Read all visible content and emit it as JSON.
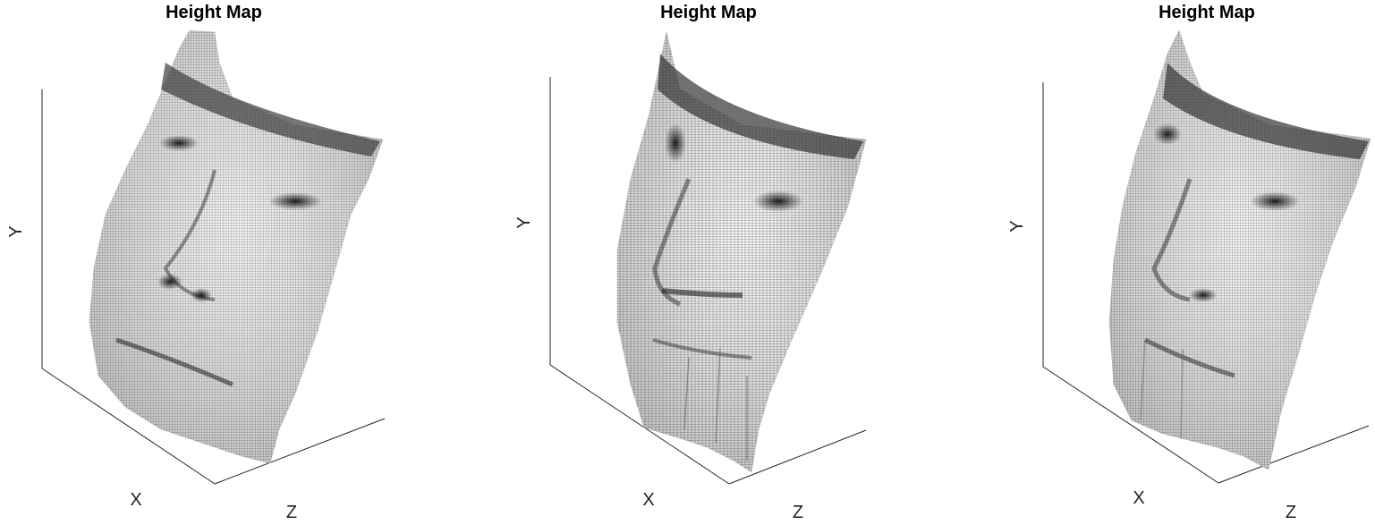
{
  "chart_data": [
    {
      "type": "surface",
      "title": "Height Map",
      "xlabel": "X",
      "ylabel": "Y",
      "zlabel": "Z",
      "colormap": "gray"
    },
    {
      "type": "surface",
      "title": "Height Map",
      "xlabel": "X",
      "ylabel": "Y",
      "zlabel": "Z",
      "colormap": "gray"
    },
    {
      "type": "surface",
      "title": "Height Map",
      "xlabel": "X",
      "ylabel": "Y",
      "zlabel": "Z",
      "colormap": "gray"
    }
  ]
}
